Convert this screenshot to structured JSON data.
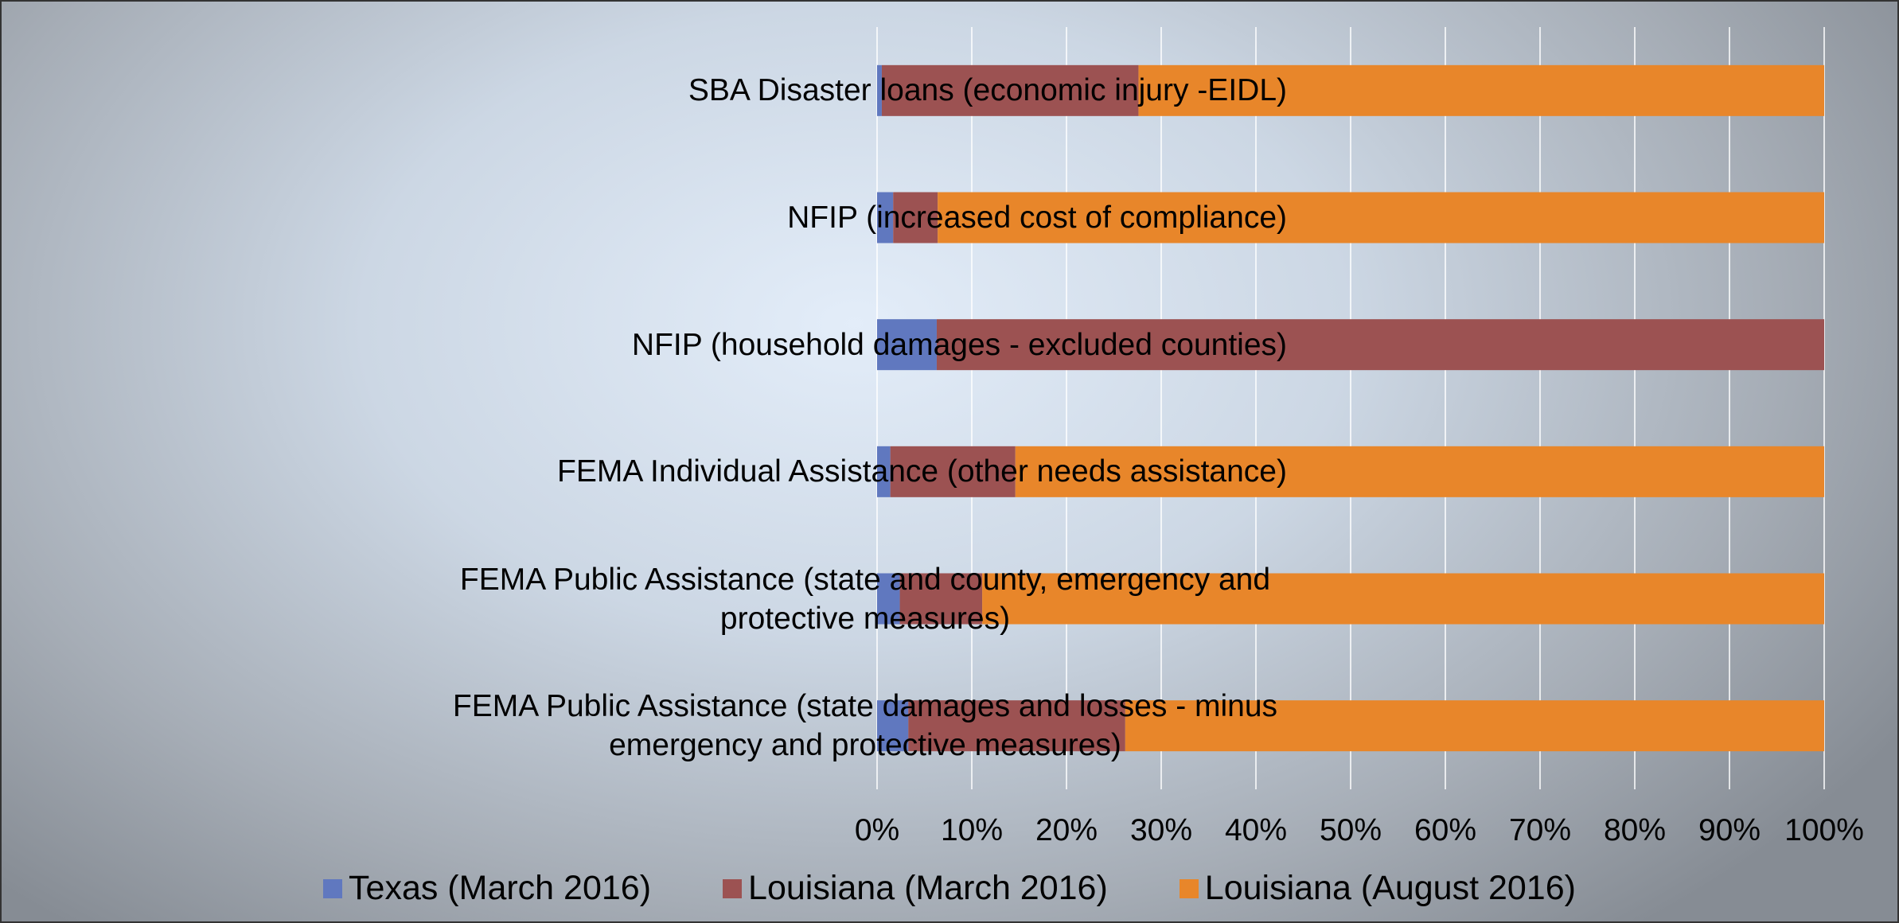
{
  "chart_data": {
    "type": "bar",
    "horizontal": true,
    "stacked": true,
    "grid": true,
    "legend": "bottom",
    "categories": [
      "SBA Disaster loans (economic injury -EIDL)",
      "NFIP (increased cost of compliance)",
      "NFIP (household damages - excluded counties)",
      "FEMA Individual Assistance (other needs assistance)",
      "FEMA Public Assistance (state and county, emergency and protective measures)",
      "FEMA Public Assistance (state damages and losses - minus emergency and protective measures)"
    ],
    "series": [
      {
        "name": "Texas (March 2016)",
        "color": "#6078bf",
        "values": [
          0.5,
          1.7,
          6.3,
          1.4,
          2.4,
          3.3
        ]
      },
      {
        "name": "Louisiana (March 2016)",
        "color": "#9c5252",
        "values": [
          27.1,
          4.7,
          93.7,
          13.2,
          8.7,
          22.9
        ]
      },
      {
        "name": "Louisiana (August 2016)",
        "color": "#e8862a",
        "values": [
          72.4,
          93.6,
          0,
          85.4,
          88.9,
          73.8
        ]
      }
    ],
    "xlim": [
      0,
      100
    ],
    "xticks": [
      {
        "value": 0,
        "label": "0%"
      },
      {
        "value": 10,
        "label": "10%"
      },
      {
        "value": 20,
        "label": "20%"
      },
      {
        "value": 30,
        "label": "30%"
      },
      {
        "value": 40,
        "label": "40%"
      },
      {
        "value": 50,
        "label": "50%"
      },
      {
        "value": 60,
        "label": "60%"
      },
      {
        "value": 70,
        "label": "70%"
      },
      {
        "value": 80,
        "label": "80%"
      },
      {
        "value": 90,
        "label": "90%"
      },
      {
        "value": 100,
        "label": "100%"
      }
    ]
  }
}
